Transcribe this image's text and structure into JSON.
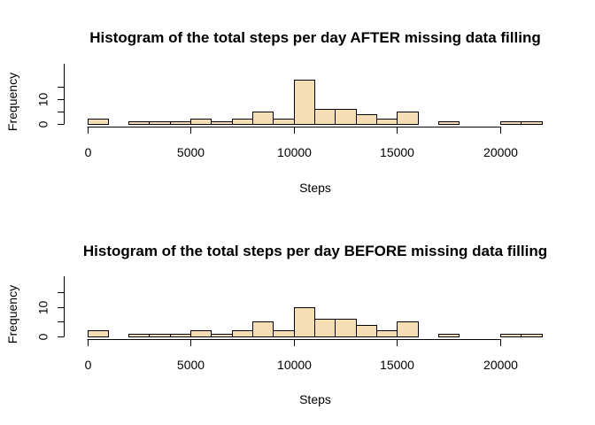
{
  "chart_data": [
    {
      "type": "bar",
      "title": "Histogram of the total steps per day AFTER missing data filling",
      "xlabel": "Steps",
      "ylabel": "Frequency",
      "bin_width": 1000,
      "bin_start": 0,
      "values": [
        2,
        0,
        1,
        1,
        1,
        2,
        1,
        2,
        5,
        2,
        18,
        6,
        6,
        4,
        2,
        5,
        0,
        1,
        0,
        0,
        1,
        1
      ],
      "xlim": [
        0,
        22000
      ],
      "ylim": [
        0,
        18
      ],
      "x_ticks": [
        0,
        5000,
        10000,
        15000,
        20000
      ],
      "y_ticks": [
        0,
        10
      ],
      "bar_color": "#F5DEB3"
    },
    {
      "type": "bar",
      "title": "Histogram of the total steps per day BEFORE missing data filling",
      "xlabel": "Steps",
      "ylabel": "Frequency",
      "bin_width": 1000,
      "bin_start": 0,
      "values": [
        2,
        0,
        1,
        1,
        1,
        2,
        1,
        2,
        5,
        2,
        10,
        6,
        6,
        4,
        2,
        5,
        0,
        1,
        0,
        0,
        1,
        1
      ],
      "xlim": [
        0,
        22000
      ],
      "ylim": [
        0,
        15
      ],
      "x_ticks": [
        0,
        5000,
        10000,
        15000,
        20000
      ],
      "y_ticks": [
        0,
        10
      ],
      "bar_color": "#F5DEB3"
    }
  ]
}
